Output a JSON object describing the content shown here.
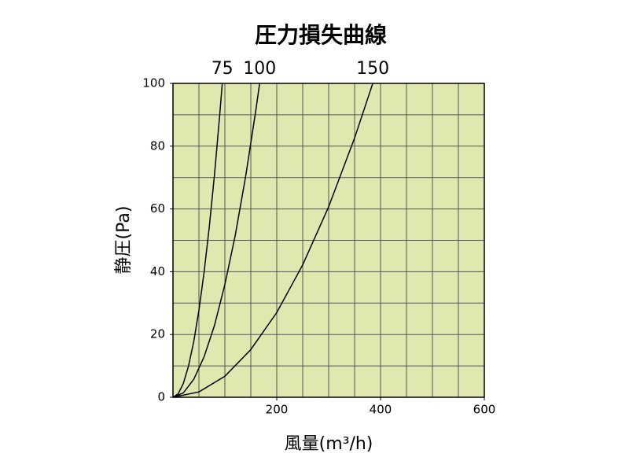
{
  "chart_data": {
    "type": "line",
    "title": "圧力損失曲線",
    "x_label": "風量(m³/h)",
    "y_label": "静圧(Pa)",
    "xlim": [
      0,
      600
    ],
    "ylim": [
      0,
      100
    ],
    "xticks": [
      200,
      400,
      600
    ],
    "yticks": [
      0,
      20,
      40,
      60,
      80,
      100
    ],
    "xgrid": [
      50,
      100,
      150,
      200,
      250,
      300,
      350,
      400,
      450,
      500,
      550
    ],
    "ygrid": [
      10,
      20,
      30,
      40,
      50,
      60,
      70,
      80,
      90
    ],
    "background": "#e0e8b0",
    "line_color": "#000000",
    "series": [
      {
        "name": "75",
        "x": [
          0,
          10,
          20,
          30,
          40,
          50,
          60,
          70,
          80,
          90,
          95
        ],
        "values": [
          0,
          1.1,
          4.4,
          10,
          17.7,
          27.7,
          39.9,
          54.3,
          70.9,
          89.8,
          100
        ]
      },
      {
        "name": "100",
        "x": [
          0,
          20,
          40,
          60,
          80,
          100,
          120,
          140,
          160,
          167
        ],
        "values": [
          0,
          1.4,
          5.7,
          12.9,
          22.9,
          35.9,
          51.6,
          70.3,
          91.8,
          100
        ]
      },
      {
        "name": "150",
        "x": [
          0,
          50,
          100,
          150,
          200,
          250,
          300,
          350,
          385
        ],
        "values": [
          0,
          1.7,
          6.7,
          15.2,
          27,
          42.2,
          60.7,
          82.6,
          100
        ]
      }
    ]
  }
}
